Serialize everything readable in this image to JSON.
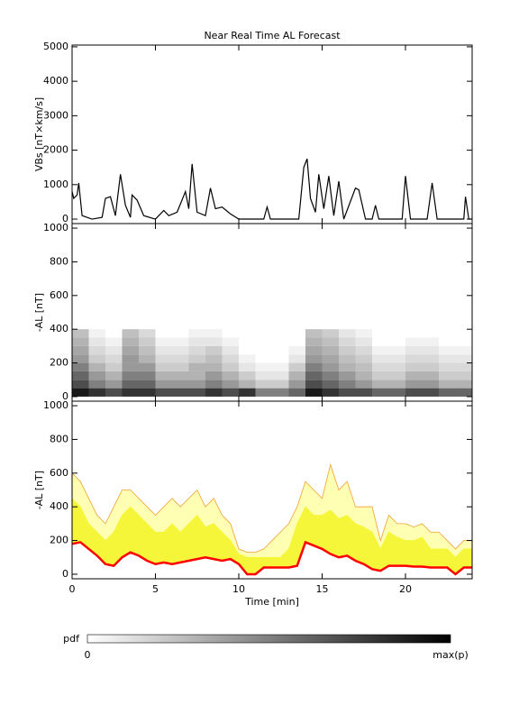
{
  "chart_data": [
    {
      "type": "line",
      "title": "Near Real Time AL Forecast",
      "ylabel": "VBs [nT×km/s]",
      "xlim": [
        0,
        24
      ],
      "ylim": [
        -130,
        5050
      ],
      "yticks": [
        0,
        1000,
        2000,
        3000,
        4000,
        5000
      ],
      "x": [
        0,
        0.1,
        0.3,
        0.4,
        0.6,
        1.2,
        1.8,
        2.0,
        2.3,
        2.6,
        2.9,
        3.2,
        3.5,
        3.6,
        3.9,
        4.3,
        5.0,
        5.5,
        5.8,
        6.3,
        6.8,
        7.0,
        7.2,
        7.5,
        8.0,
        8.3,
        8.6,
        9.0,
        9.5,
        10.0,
        11.5,
        11.7,
        11.9,
        13.6,
        13.9,
        14.1,
        14.3,
        14.6,
        14.8,
        15.1,
        15.4,
        15.7,
        16.0,
        16.3,
        17.0,
        17.2,
        17.6,
        18.0,
        18.2,
        18.4,
        19.8,
        20.0,
        20.3,
        21.3,
        21.6,
        21.9,
        23.5,
        23.6,
        23.8,
        24
      ],
      "series": [
        {
          "color": "#000000",
          "values": [
            800,
            600,
            700,
            1050,
            100,
            0,
            50,
            600,
            650,
            100,
            1300,
            400,
            50,
            700,
            550,
            100,
            0,
            250,
            100,
            200,
            800,
            300,
            1600,
            200,
            100,
            900,
            300,
            350,
            150,
            0,
            0,
            350,
            0,
            0,
            1500,
            1750,
            600,
            200,
            1300,
            300,
            1250,
            100,
            1100,
            0,
            900,
            850,
            0,
            0,
            400,
            0,
            0,
            1250,
            0,
            0,
            1050,
            0,
            0,
            650,
            0,
            0
          ]
        }
      ]
    },
    {
      "type": "heatmap",
      "ylabel": "-AL [nT]",
      "xlim": [
        0,
        24
      ],
      "ylim": [
        -27,
        1027
      ],
      "yticks": [
        0,
        200,
        400,
        600,
        800,
        1000
      ],
      "xbins": [
        0,
        1,
        2,
        3,
        4,
        5,
        6,
        7,
        8,
        9,
        10,
        11,
        12,
        13,
        14,
        15,
        16,
        17,
        18,
        19,
        20,
        21,
        22,
        23,
        24
      ],
      "ybins": [
        0,
        50,
        100,
        150,
        200,
        250,
        300,
        350,
        400
      ],
      "values": [
        [
          0.9,
          0.8,
          0.7,
          0.8,
          0.8,
          0.7,
          0.7,
          0.7,
          0.8,
          0.7,
          0.8,
          0.5,
          0.5,
          0.6,
          0.9,
          0.8,
          0.7,
          0.7,
          0.6,
          0.6,
          0.7,
          0.7,
          0.6,
          0.6
        ],
        [
          0.7,
          0.5,
          0.4,
          0.6,
          0.6,
          0.4,
          0.4,
          0.4,
          0.5,
          0.4,
          0.3,
          0.2,
          0.2,
          0.4,
          0.7,
          0.6,
          0.5,
          0.4,
          0.3,
          0.3,
          0.4,
          0.4,
          0.3,
          0.3
        ],
        [
          0.6,
          0.4,
          0.3,
          0.5,
          0.5,
          0.3,
          0.3,
          0.3,
          0.4,
          0.3,
          0.2,
          0.1,
          0.1,
          0.3,
          0.6,
          0.5,
          0.4,
          0.3,
          0.2,
          0.2,
          0.3,
          0.3,
          0.2,
          0.2
        ],
        [
          0.5,
          0.3,
          0.2,
          0.4,
          0.4,
          0.2,
          0.2,
          0.3,
          0.3,
          0.2,
          0.1,
          0.05,
          0.05,
          0.2,
          0.5,
          0.4,
          0.3,
          0.25,
          0.15,
          0.15,
          0.2,
          0.2,
          0.15,
          0.15
        ],
        [
          0.4,
          0.2,
          0.15,
          0.4,
          0.3,
          0.15,
          0.15,
          0.2,
          0.25,
          0.15,
          0.05,
          0,
          0,
          0.1,
          0.4,
          0.35,
          0.25,
          0.2,
          0.1,
          0.1,
          0.15,
          0.15,
          0.1,
          0.1
        ],
        [
          0.35,
          0.15,
          0.1,
          0.35,
          0.25,
          0.1,
          0.1,
          0.15,
          0.2,
          0.1,
          0,
          0,
          0,
          0.05,
          0.35,
          0.3,
          0.2,
          0.15,
          0.05,
          0.05,
          0.1,
          0.1,
          0.05,
          0.05
        ],
        [
          0.3,
          0.1,
          0.05,
          0.3,
          0.2,
          0.05,
          0.05,
          0.1,
          0.1,
          0.05,
          0,
          0,
          0,
          0,
          0.3,
          0.25,
          0.15,
          0.1,
          0,
          0,
          0.05,
          0.05,
          0,
          0
        ],
        [
          0.25,
          0.05,
          0,
          0.25,
          0.15,
          0,
          0,
          0.05,
          0.05,
          0,
          0,
          0,
          0,
          0,
          0.25,
          0.2,
          0.1,
          0.05,
          0,
          0,
          0,
          0,
          0,
          0
        ]
      ],
      "colorbar_label": "pdf",
      "colorbar_ticks": [
        "0",
        "max(p)"
      ]
    },
    {
      "type": "band",
      "ylabel": "-AL [nT]",
      "xlabel": "Time [min]",
      "xlim": [
        0,
        24
      ],
      "ylim": [
        -27,
        1027
      ],
      "yticks": [
        0,
        200,
        400,
        600,
        800,
        1000
      ],
      "xticks": [
        0,
        5,
        10,
        15,
        20
      ],
      "x": [
        0,
        0.5,
        1,
        1.5,
        2,
        2.5,
        3,
        3.5,
        4,
        4.5,
        5,
        5.5,
        6,
        6.5,
        7,
        7.5,
        8,
        8.5,
        9,
        9.5,
        10,
        10.5,
        11,
        11.5,
        12,
        12.5,
        13,
        13.5,
        14,
        14.5,
        15,
        15.5,
        16,
        16.5,
        17,
        17.5,
        18,
        18.5,
        19,
        19.5,
        20,
        20.5,
        21,
        21.5,
        22,
        22.5,
        23,
        23.5,
        24
      ],
      "series": [
        {
          "color": "#f0a030",
          "fill": "#ffffb4",
          "values": [
            600,
            550,
            450,
            350,
            300,
            400,
            500,
            500,
            450,
            400,
            350,
            400,
            450,
            400,
            450,
            500,
            400,
            450,
            350,
            300,
            150,
            130,
            130,
            150,
            200,
            250,
            300,
            400,
            550,
            500,
            450,
            650,
            500,
            550,
            400,
            400,
            400,
            200,
            350,
            300,
            300,
            280,
            300,
            250,
            250,
            200,
            150,
            200,
            200
          ]
        },
        {
          "color": "#f5f53a",
          "fill": "#f5f53a",
          "values": [
            450,
            400,
            300,
            250,
            200,
            250,
            350,
            400,
            350,
            300,
            250,
            250,
            300,
            250,
            300,
            350,
            280,
            300,
            250,
            200,
            120,
            100,
            100,
            100,
            100,
            100,
            150,
            300,
            400,
            350,
            350,
            380,
            330,
            350,
            300,
            280,
            250,
            150,
            250,
            220,
            200,
            200,
            220,
            150,
            150,
            150,
            100,
            150,
            150
          ]
        },
        {
          "color": "#ff0000",
          "fill": "#ffffff",
          "values": [
            180,
            190,
            150,
            110,
            60,
            50,
            100,
            130,
            110,
            80,
            60,
            70,
            60,
            70,
            80,
            90,
            100,
            90,
            80,
            90,
            60,
            0,
            0,
            40,
            40,
            40,
            40,
            50,
            190,
            170,
            150,
            120,
            100,
            110,
            80,
            60,
            30,
            20,
            50,
            50,
            50,
            45,
            45,
            40,
            40,
            40,
            0,
            40,
            40
          ]
        }
      ]
    }
  ]
}
